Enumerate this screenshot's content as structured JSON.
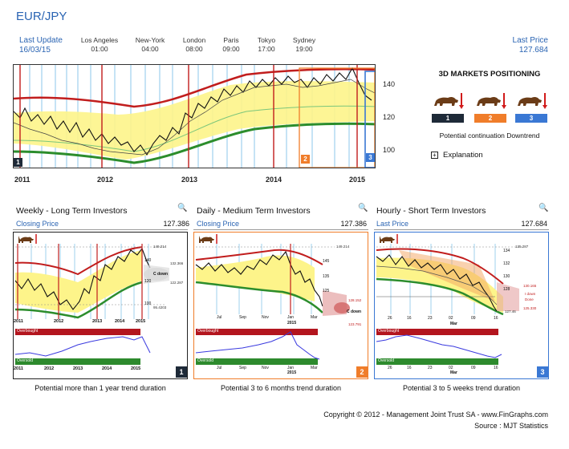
{
  "header": {
    "title": "EUR/JPY",
    "last_update_label": "Last Update",
    "last_update_date": "16/03/15",
    "last_price_label": "Last Price",
    "last_price_value": "127.684",
    "cities": [
      {
        "name": "Los Angeles",
        "time": "01:00"
      },
      {
        "name": "New-York",
        "time": "04:00"
      },
      {
        "name": "London",
        "time": "08:00"
      },
      {
        "name": "Paris",
        "time": "09:00"
      },
      {
        "name": "Tokyo",
        "time": "17:00"
      },
      {
        "name": "Sydney",
        "time": "19:00"
      }
    ]
  },
  "main_chart": {
    "y_ticks": [
      "140",
      "120",
      "100"
    ],
    "x_ticks": [
      "2011",
      "2012",
      "2013",
      "2014",
      "2015"
    ],
    "markers": [
      "1",
      "2",
      "3"
    ]
  },
  "positioning": {
    "title": "3D MARKETS POSITIONING",
    "boxes": [
      {
        "num": "1",
        "color": "#1e2a38"
      },
      {
        "num": "2",
        "color": "#f07d2a"
      },
      {
        "num": "3",
        "color": "#3a78d4"
      }
    ],
    "subtitle": "Potential continuation Downtrend",
    "explanation": "Explanation"
  },
  "panels": [
    {
      "title": "Weekly - Long Term Investors",
      "price_label": "Closing Price",
      "price_value": "127.386",
      "footer": "Potential more than 1 year trend duration",
      "num": "1",
      "border": "#222222",
      "num_bg": "#1e2a38",
      "x_ticks": [
        "2011",
        "2012",
        "2013",
        "2014",
        "2015"
      ],
      "y_ticks": [
        "140",
        "120",
        "100"
      ],
      "hlines": [
        "149.214",
        "132.366",
        "122.287",
        "95.4203"
      ],
      "cloud_text": "C down",
      "overbought": "Overbought",
      "oversold": "Oversold"
    },
    {
      "title": "Daily - Medium Term Investors",
      "price_label": "Closing Price",
      "price_value": "127.386",
      "footer": "Potential 3 to 6 months trend duration",
      "num": "2",
      "border": "#f07d2a",
      "num_bg": "#f07d2a",
      "x_ticks": [
        "Jul",
        "Sep",
        "Nov",
        "Jan",
        "Mar"
      ],
      "x_sub": "2015",
      "y_ticks": [
        "145",
        "135",
        "125"
      ],
      "hlines": [
        "149.214",
        "128.152",
        "123.791"
      ],
      "cloud_text": "C down",
      "overbought": "Overbought",
      "oversold": "Oversold"
    },
    {
      "title": "Hourly - Short Term Investors",
      "price_label": "Last Price",
      "price_value": "127.684",
      "footer": "Potential 3 to 5 weeks trend duration",
      "num": "3",
      "border": "#3a78d4",
      "num_bg": "#3a78d4",
      "x_ticks": [
        "26",
        "16",
        "23",
        "02",
        "09",
        "16"
      ],
      "x_sub": "Mar",
      "y_ticks": [
        "134",
        "132",
        "130",
        "128"
      ],
      "hlines": [
        "135.287",
        "130.165",
        "125.330",
        "127.46"
      ],
      "cloud_text": "I down",
      "cloud_text2": "Done",
      "overbought": "Overbought",
      "oversold": "Oversold"
    }
  ],
  "footer": {
    "copyright": "Copyright © 2012 - Management Joint Trust SA - www.FinGraphs.com",
    "source": "Source : MJT Statistics"
  }
}
